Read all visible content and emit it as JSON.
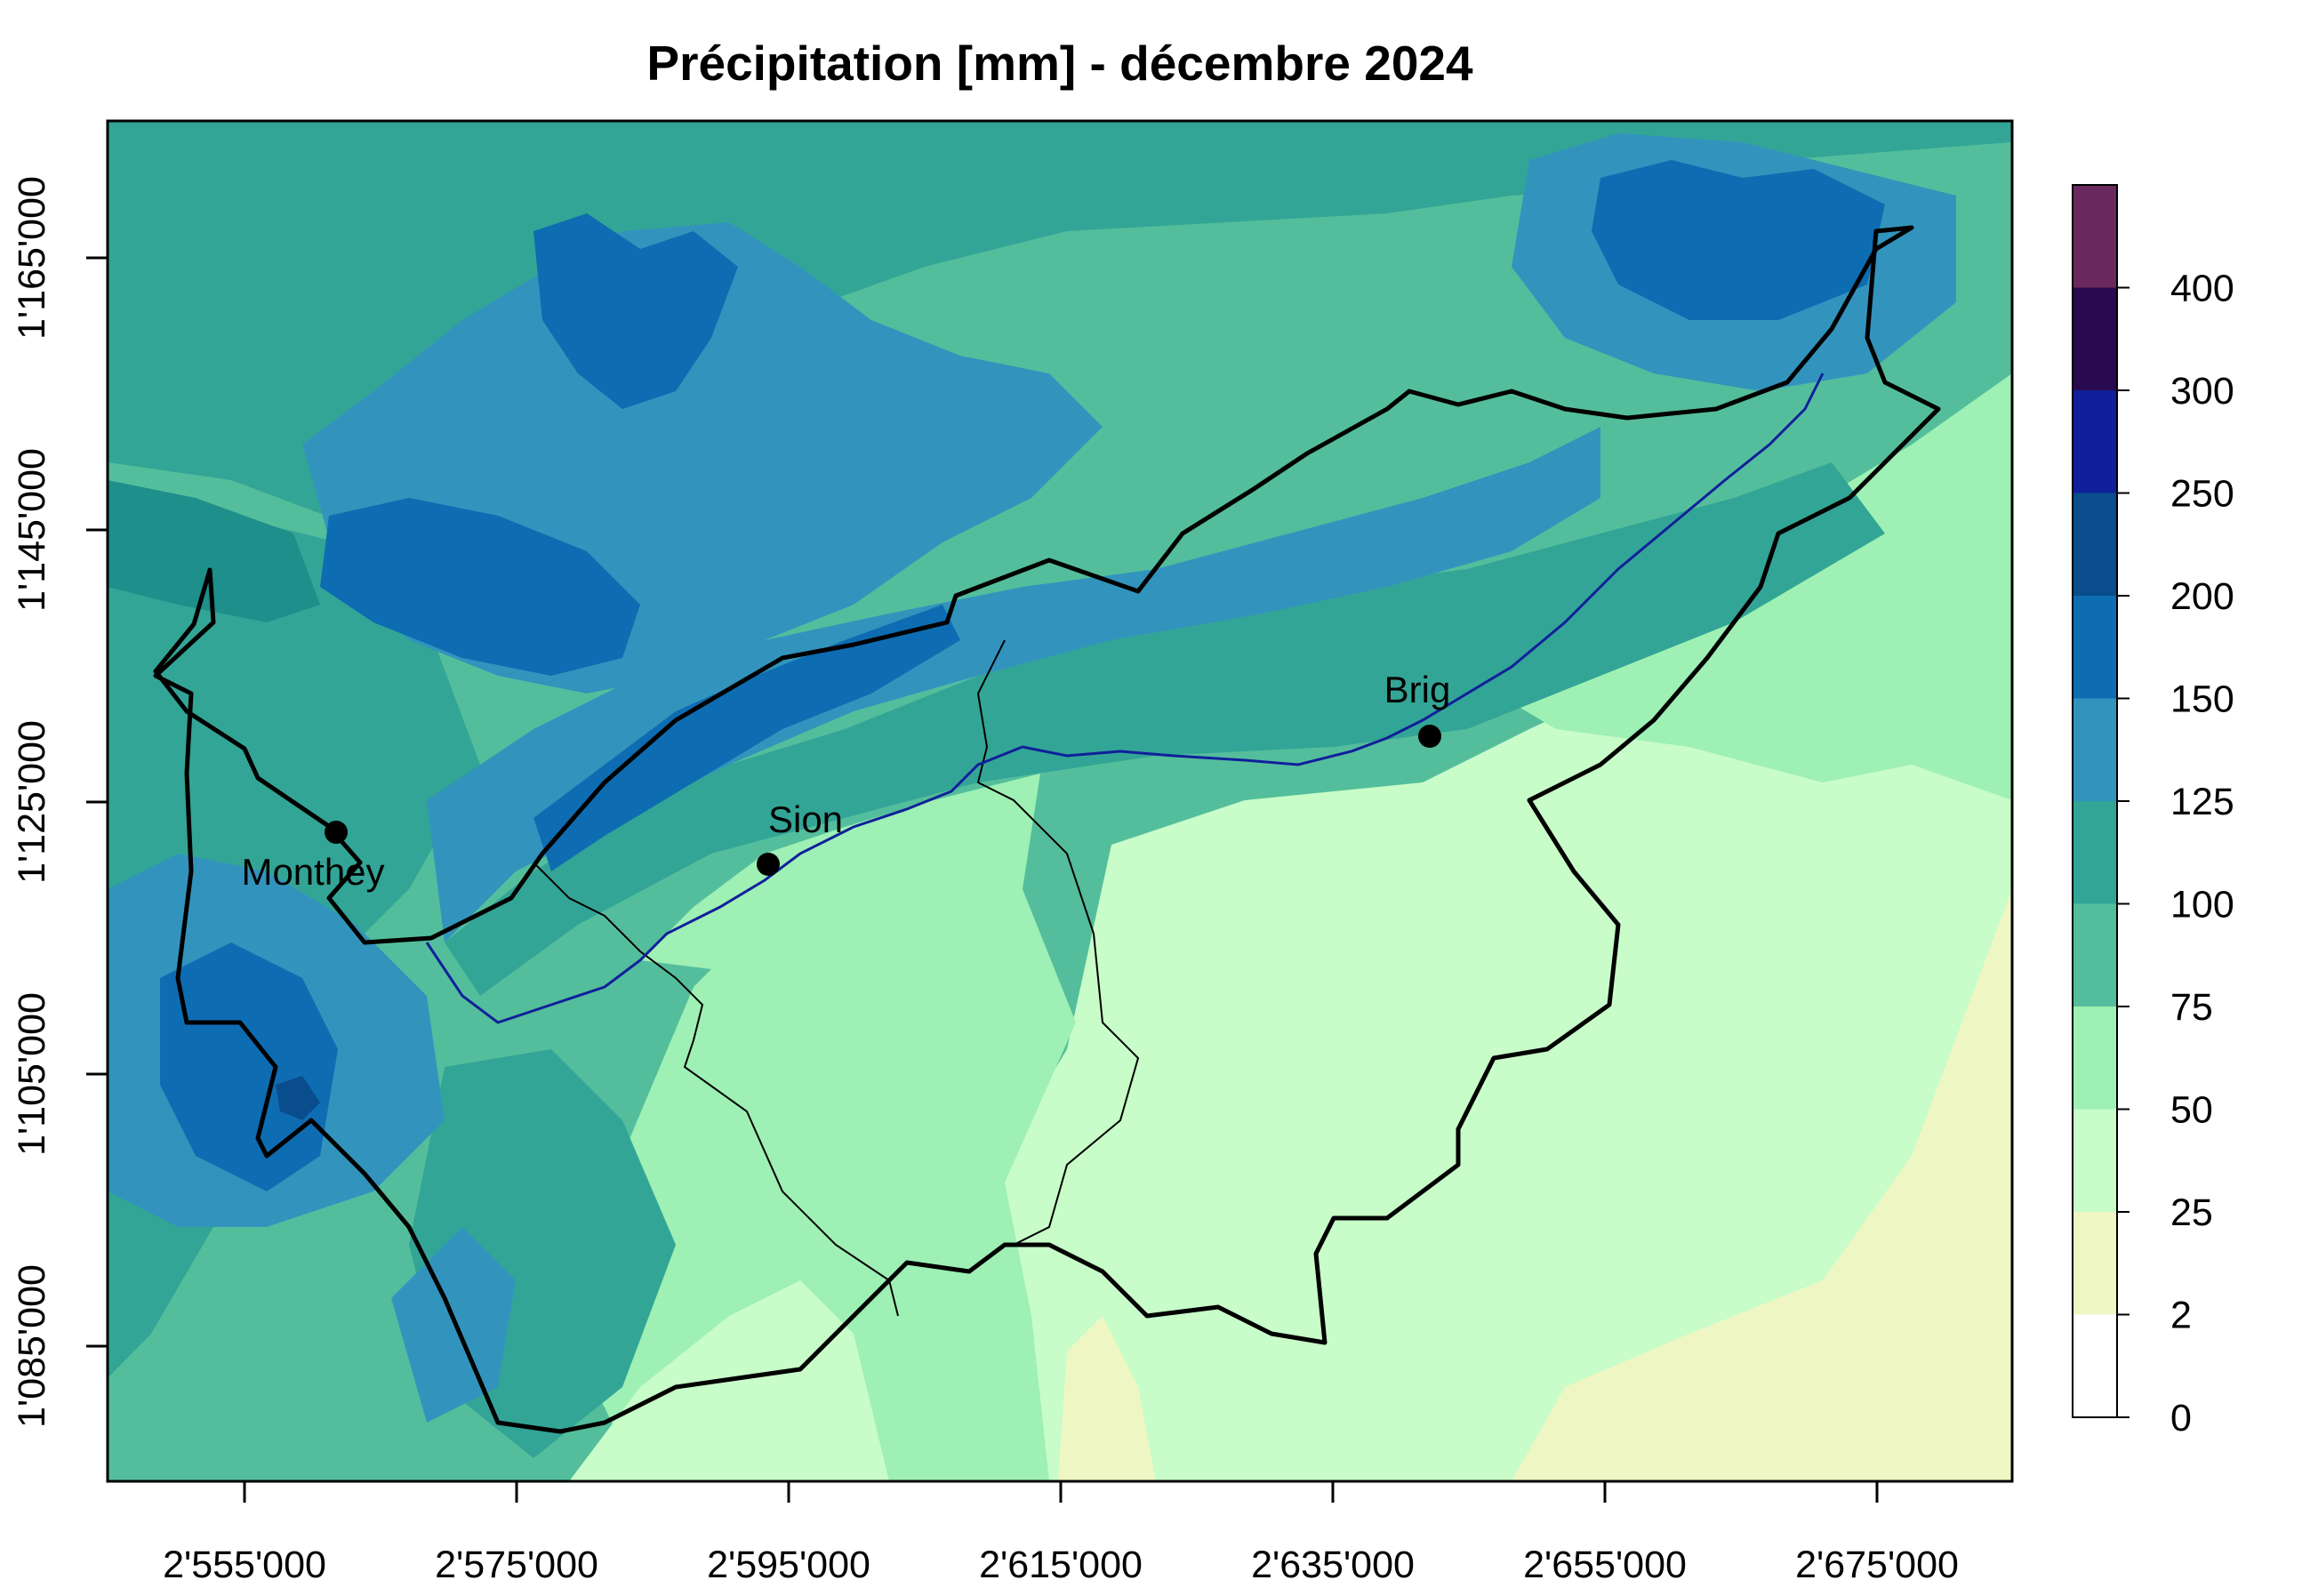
{
  "title": "Précipitation [mm] - décembre 2024",
  "x_axis": {
    "ticks": [
      "2'555'000",
      "2'575'000",
      "2'595'000",
      "2'615'000",
      "2'635'000",
      "2'655'000",
      "2'675'000"
    ]
  },
  "y_axis": {
    "ticks": [
      "1'085'000",
      "1'105'000",
      "1'125'000",
      "1'145'000",
      "1'165'000"
    ]
  },
  "cities": [
    {
      "name": "Monthey"
    },
    {
      "name": "Sion"
    },
    {
      "name": "Brig"
    }
  ],
  "legend": {
    "labels": [
      "0",
      "2",
      "25",
      "50",
      "75",
      "100",
      "125",
      "150",
      "200",
      "250",
      "300",
      "400"
    ],
    "classes": [
      {
        "from": "0",
        "to": "2",
        "color": "#ffffff"
      },
      {
        "from": "2",
        "to": "25",
        "color": "#eef7c4"
      },
      {
        "from": "25",
        "to": "50",
        "color": "#c8fcc8"
      },
      {
        "from": "50",
        "to": "75",
        "color": "#9ef0b4"
      },
      {
        "from": "75",
        "to": "100",
        "color": "#54be9c"
      },
      {
        "from": "100",
        "to": "125",
        "color": "#33a596"
      },
      {
        "from": "125",
        "to": "150",
        "color": "#3294bd"
      },
      {
        "from": "150",
        "to": "200",
        "color": "#0e6cb2"
      },
      {
        "from": "200",
        "to": "250",
        "color": "#0a4d8c"
      },
      {
        "from": "250",
        "to": "300",
        "color": "#10209a"
      },
      {
        "from": "300",
        "to": "400",
        "color": "#2a0a4e"
      },
      {
        "from": "400",
        "to": "",
        "color": "#6a2a5e"
      }
    ]
  }
}
